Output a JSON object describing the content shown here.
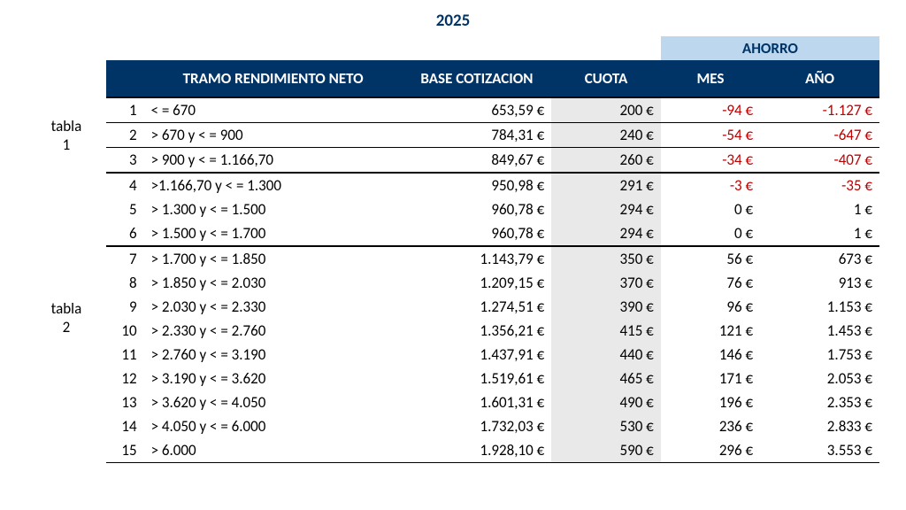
{
  "colors": {
    "brand": "#003466",
    "banner_bg": "#bdd7ee",
    "neg": "#c00000",
    "cuota_fill": "#e9e9e9",
    "text": "#000000"
  },
  "year": "2025",
  "banner": "AHORRO",
  "headers": {
    "tramo": "TRAMO RENDIMIENTO NETO",
    "base": "BASE COTIZACION",
    "cuota": "CUOTA",
    "mes": "MES",
    "ano": "AÑO"
  },
  "groups": [
    {
      "label": "tabla 1",
      "rows": [
        {
          "idx": "1",
          "tramo": "< = 670",
          "base": "653,59 €",
          "cuota": "200 €",
          "mes": "-94 €",
          "ano": "-1.127 €",
          "neg": true
        },
        {
          "idx": "2",
          "tramo": "> 670 y < = 900",
          "base": "784,31 €",
          "cuota": "240 €",
          "mes": "-54 €",
          "ano": "-647 €",
          "neg": true
        },
        {
          "idx": "3",
          "tramo": "> 900 y < = 1.166,70",
          "base": "849,67 €",
          "cuota": "260 €",
          "mes": "-34 €",
          "ano": "-407 €",
          "neg": true
        }
      ]
    },
    {
      "label": "tabla 2",
      "subgroups": [
        [
          {
            "idx": "4",
            "tramo": ">1.166,70 y < = 1.300",
            "base": "950,98 €",
            "cuota": "291 €",
            "mes": "-3 €",
            "ano": "-35 €",
            "neg": true
          },
          {
            "idx": "5",
            "tramo": "> 1.300 y < = 1.500",
            "base": "960,78 €",
            "cuota": "294 €",
            "mes": "0 €",
            "ano": "1 €",
            "neg": false
          },
          {
            "idx": "6",
            "tramo": "> 1.500 y < = 1.700",
            "base": "960,78 €",
            "cuota": "294 €",
            "mes": "0 €",
            "ano": "1 €",
            "neg": false
          }
        ],
        [
          {
            "idx": "7",
            "tramo": "> 1.700 y < = 1.850",
            "base": "1.143,79 €",
            "cuota": "350 €",
            "mes": "56 €",
            "ano": "673 €",
            "neg": false
          },
          {
            "idx": "8",
            "tramo": "> 1.850 y < = 2.030",
            "base": "1.209,15 €",
            "cuota": "370 €",
            "mes": "76 €",
            "ano": "913 €",
            "neg": false
          },
          {
            "idx": "9",
            "tramo": "> 2.030 y < = 2.330",
            "base": "1.274,51 €",
            "cuota": "390 €",
            "mes": "96 €",
            "ano": "1.153 €",
            "neg": false
          },
          {
            "idx": "10",
            "tramo": "> 2.330 y < = 2.760",
            "base": "1.356,21 €",
            "cuota": "415 €",
            "mes": "121 €",
            "ano": "1.453 €",
            "neg": false
          },
          {
            "idx": "11",
            "tramo": "> 2.760 y < = 3.190",
            "base": "1.437,91 €",
            "cuota": "440 €",
            "mes": "146 €",
            "ano": "1.753 €",
            "neg": false
          },
          {
            "idx": "12",
            "tramo": "> 3.190 y < = 3.620",
            "base": "1.519,61 €",
            "cuota": "465 €",
            "mes": "171 €",
            "ano": "2.053 €",
            "neg": false
          },
          {
            "idx": "13",
            "tramo": "> 3.620 y < = 4.050",
            "base": "1.601,31 €",
            "cuota": "490 €",
            "mes": "196 €",
            "ano": "2.353 €",
            "neg": false
          },
          {
            "idx": "14",
            "tramo": "> 4.050 y  < = 6.000",
            "base": "1.732,03 €",
            "cuota": "530 €",
            "mes": "236 €",
            "ano": "2.833 €",
            "neg": false
          },
          {
            "idx": "15",
            "tramo": "> 6.000",
            "base": "1.928,10 €",
            "cuota": "590 €",
            "mes": "296 €",
            "ano": "3.553 €",
            "neg": false
          }
        ]
      ]
    }
  ]
}
